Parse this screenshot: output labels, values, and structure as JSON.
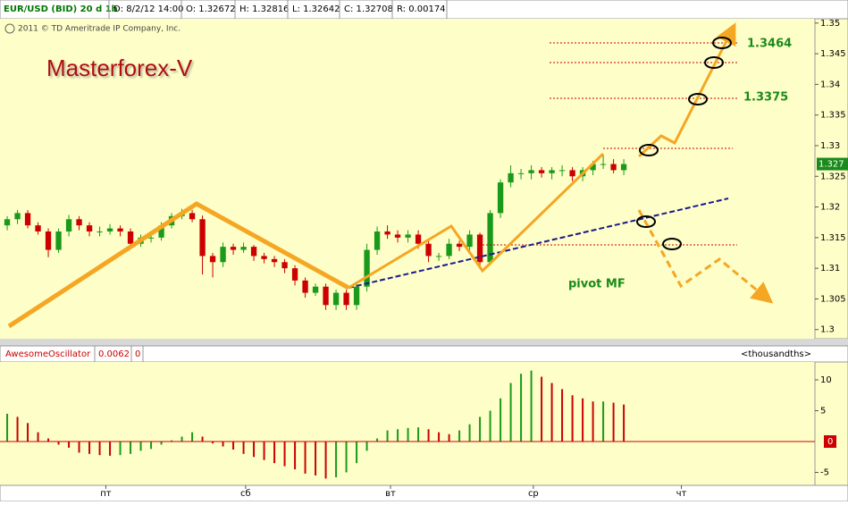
{
  "header": {
    "symbol": "EUR/USD (BID) 20 d 1h",
    "date": "D: 8/2/12 14:00",
    "open": "O: 1.32672",
    "high": "H: 1.32816",
    "low": "L: 1.32642",
    "close": "C: 1.32708",
    "range": "R: 0.00174",
    "copyright": "2011 © TD Ameritrade IP Company, Inc."
  },
  "chart_data": [
    {
      "type": "candlestick",
      "title": "Masterforex-V",
      "annotations": {
        "level_1": "1.3464",
        "level_2": "1.3375",
        "pivot": "pivot MF"
      },
      "open": [
        1.317,
        1.318,
        1.319,
        1.317,
        1.316,
        1.313,
        1.316,
        1.318,
        1.317,
        1.316,
        1.316,
        1.3165,
        1.316,
        1.314,
        1.315,
        1.315,
        1.317,
        1.3185,
        1.319,
        1.318,
        1.312,
        1.311,
        1.3135,
        1.313,
        1.3135,
        1.312,
        1.3115,
        1.311,
        1.31,
        1.308,
        1.306,
        1.307,
        1.304,
        1.306,
        1.304,
        1.307,
        1.313,
        1.316,
        1.3155,
        1.315,
        1.3155,
        1.314,
        1.312,
        1.312,
        1.314,
        1.3135,
        1.3155,
        1.311,
        1.319,
        1.324,
        1.3255,
        1.3255,
        1.326,
        1.3255,
        1.326,
        1.326,
        1.325,
        1.326,
        1.327,
        1.327,
        1.326
      ],
      "high": [
        1.3185,
        1.3195,
        1.3195,
        1.3175,
        1.3165,
        1.3165,
        1.3187,
        1.3185,
        1.3175,
        1.3168,
        1.3172,
        1.317,
        1.3165,
        1.3155,
        1.3157,
        1.3175,
        1.319,
        1.3197,
        1.3195,
        1.3186,
        1.3125,
        1.3142,
        1.314,
        1.3142,
        1.3138,
        1.3125,
        1.312,
        1.3115,
        1.3105,
        1.3085,
        1.3075,
        1.3075,
        1.3065,
        1.3065,
        1.3075,
        1.314,
        1.3168,
        1.317,
        1.3162,
        1.3162,
        1.3162,
        1.3145,
        1.3125,
        1.3148,
        1.3145,
        1.3162,
        1.3158,
        1.3195,
        1.3245,
        1.3268,
        1.3262,
        1.3268,
        1.3265,
        1.3265,
        1.3268,
        1.3265,
        1.3265,
        1.3275,
        1.3285,
        1.3278,
        1.3278
      ],
      "low": [
        1.3162,
        1.3172,
        1.3165,
        1.3155,
        1.3118,
        1.3125,
        1.3152,
        1.3162,
        1.3152,
        1.3152,
        1.3155,
        1.3152,
        1.3132,
        1.3135,
        1.3142,
        1.3145,
        1.3165,
        1.318,
        1.3175,
        1.309,
        1.3085,
        1.3102,
        1.3122,
        1.3125,
        1.3112,
        1.3108,
        1.3102,
        1.3092,
        1.3072,
        1.3052,
        1.3055,
        1.3032,
        1.3032,
        1.3032,
        1.3032,
        1.3062,
        1.3122,
        1.3148,
        1.3142,
        1.3142,
        1.3132,
        1.311,
        1.3112,
        1.3115,
        1.3128,
        1.3128,
        1.3102,
        1.3105,
        1.3182,
        1.3232,
        1.3245,
        1.3245,
        1.3248,
        1.3245,
        1.325,
        1.3242,
        1.3242,
        1.3252,
        1.3262,
        1.3255,
        1.3252
      ],
      "close": [
        1.318,
        1.319,
        1.317,
        1.316,
        1.313,
        1.316,
        1.318,
        1.317,
        1.316,
        1.316,
        1.3165,
        1.316,
        1.314,
        1.315,
        1.315,
        1.317,
        1.3185,
        1.319,
        1.318,
        1.312,
        1.311,
        1.3135,
        1.313,
        1.3135,
        1.312,
        1.3115,
        1.311,
        1.31,
        1.308,
        1.306,
        1.307,
        1.304,
        1.306,
        1.304,
        1.307,
        1.313,
        1.316,
        1.3155,
        1.315,
        1.3155,
        1.314,
        1.312,
        1.312,
        1.314,
        1.3135,
        1.3155,
        1.311,
        1.319,
        1.324,
        1.3255,
        1.3255,
        1.326,
        1.3255,
        1.326,
        1.326,
        1.325,
        1.326,
        1.327,
        1.327,
        1.326,
        1.327
      ],
      "up_color": "#1a9a1a",
      "down_color": "#cc0000",
      "last_price": 1.327,
      "xlim": [
        -0.7,
        78.6
      ],
      "xticks": [
        {
          "value": 9.6,
          "label": "пт"
        },
        {
          "value": 23.2,
          "label": "сб"
        },
        {
          "value": 37.3,
          "label": "вт"
        },
        {
          "value": 51.2,
          "label": "ср"
        },
        {
          "value": 65.6,
          "label": "чт"
        }
      ],
      "ylim": [
        1.2985,
        1.3507
      ],
      "yticks": [
        1.3,
        1.305,
        1.31,
        1.315,
        1.32,
        1.325,
        1.33,
        1.335,
        1.34,
        1.345,
        1.35
      ]
    },
    {
      "type": "oscillator",
      "title": "AwesomeOscillator",
      "current": "0.0062",
      "setting": "0",
      "units": "<thousandths>",
      "values": [
        4.5,
        4,
        3,
        1.5,
        0.5,
        -0.5,
        -1,
        -1.8,
        -2,
        -2.2,
        -2.3,
        -2.2,
        -2,
        -1.5,
        -1.2,
        -0.5,
        0.2,
        0.8,
        1.5,
        0.8,
        -0.3,
        -0.8,
        -1.3,
        -2,
        -2.5,
        -3,
        -3.5,
        -4,
        -4.5,
        -5.2,
        -5.5,
        -6,
        -5.8,
        -5,
        -3.5,
        -1.5,
        0.5,
        1.8,
        2,
        2.2,
        2.3,
        2,
        1.5,
        1.2,
        1.8,
        2.8,
        4,
        5,
        7,
        9.5,
        11,
        11.5,
        10.5,
        9.5,
        8.5,
        7.5,
        7,
        6.5,
        6.5,
        6.3,
        6
      ],
      "up_color": "#1a9a1a",
      "down_color": "#cc0000",
      "ylim": [
        -7.1,
        12.9
      ],
      "yticks": [
        -5,
        0,
        5,
        10
      ]
    }
  ]
}
